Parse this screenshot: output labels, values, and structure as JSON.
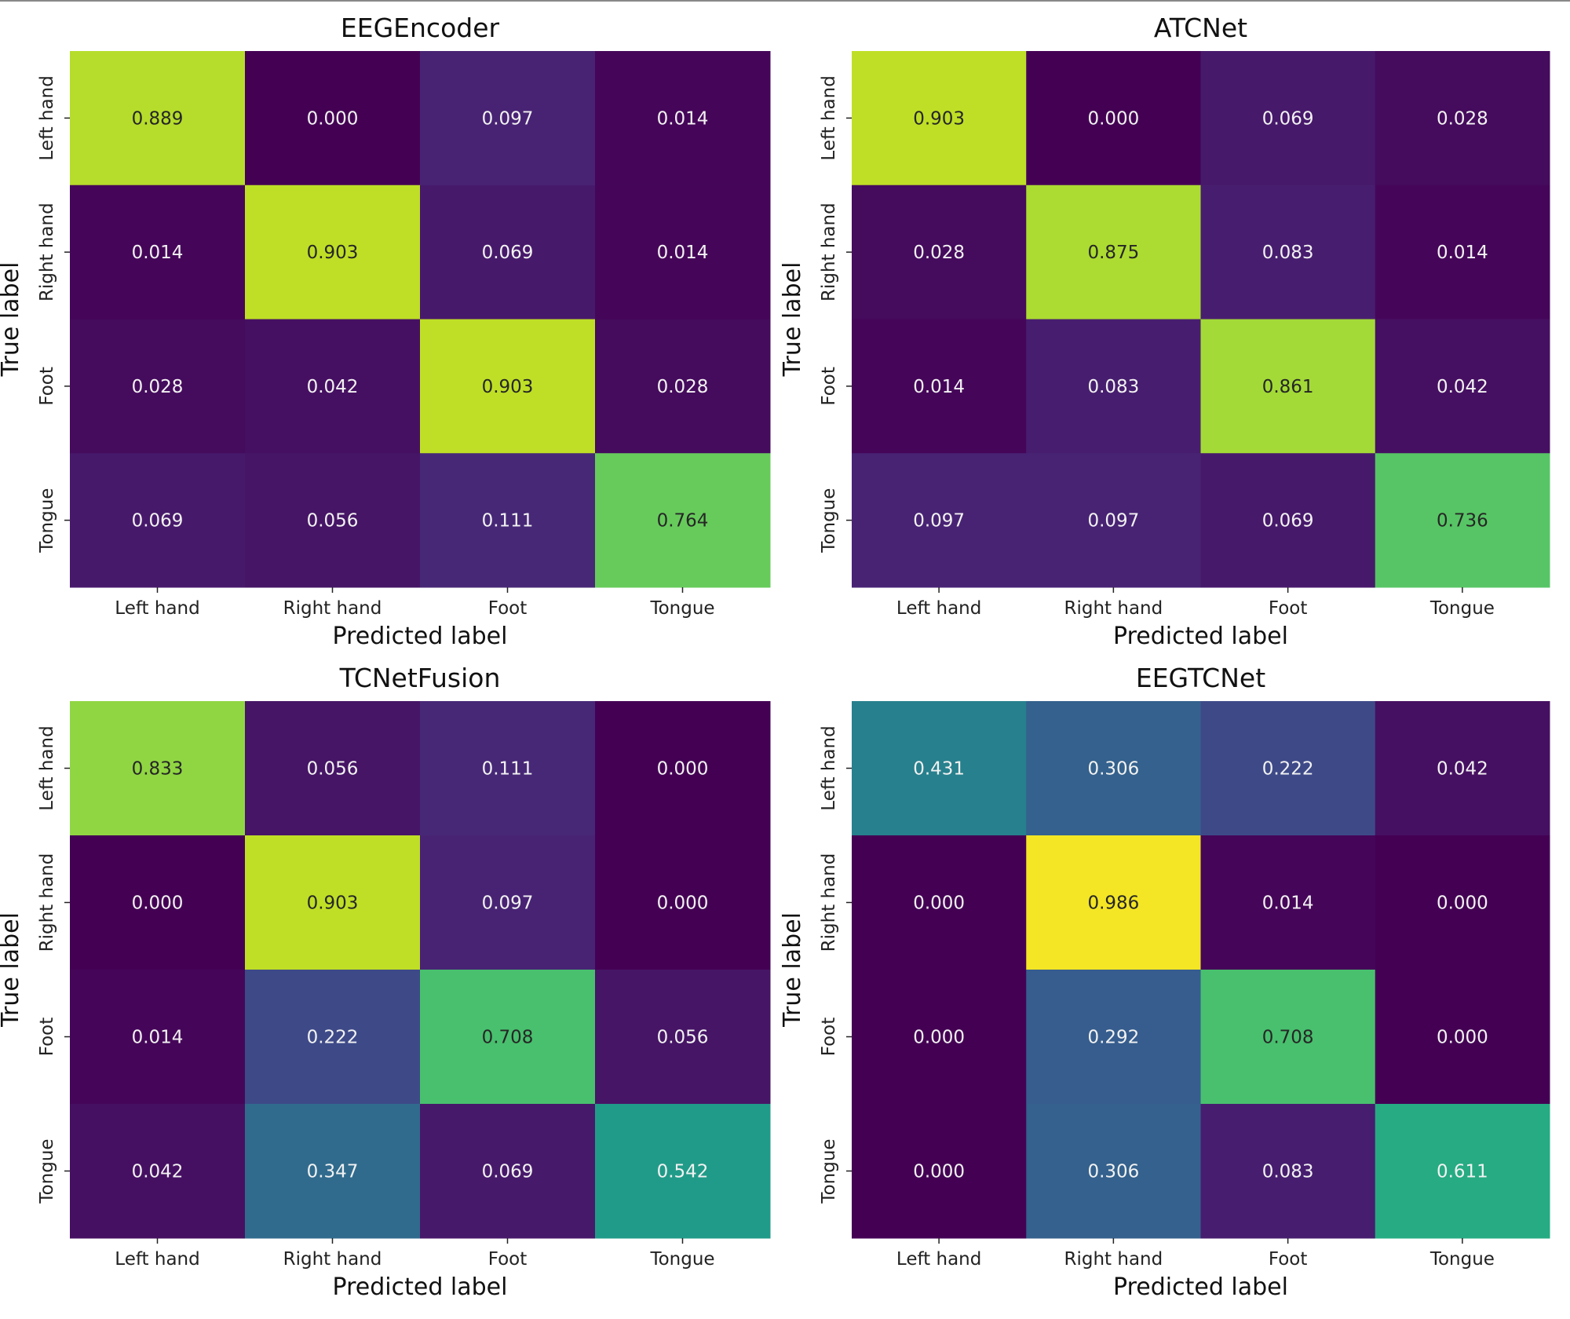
{
  "chart_data": [
    {
      "type": "heatmap",
      "title": "EEGEncoder",
      "xlabel": "Predicted label",
      "ylabel": "True label",
      "x_categories": [
        "Left hand",
        "Right hand",
        "Foot",
        "Tongue"
      ],
      "y_categories": [
        "Left hand",
        "Right hand",
        "Foot",
        "Tongue"
      ],
      "values": [
        [
          0.889,
          0.0,
          0.097,
          0.014
        ],
        [
          0.014,
          0.903,
          0.069,
          0.014
        ],
        [
          0.028,
          0.042,
          0.903,
          0.028
        ],
        [
          0.069,
          0.056,
          0.111,
          0.764
        ]
      ],
      "colormap": "viridis",
      "value_range": [
        0,
        1
      ]
    },
    {
      "type": "heatmap",
      "title": "ATCNet",
      "xlabel": "Predicted label",
      "ylabel": "True label",
      "x_categories": [
        "Left hand",
        "Right hand",
        "Foot",
        "Tongue"
      ],
      "y_categories": [
        "Left hand",
        "Right hand",
        "Foot",
        "Tongue"
      ],
      "values": [
        [
          0.903,
          0.0,
          0.069,
          0.028
        ],
        [
          0.028,
          0.875,
          0.083,
          0.014
        ],
        [
          0.014,
          0.083,
          0.861,
          0.042
        ],
        [
          0.097,
          0.097,
          0.069,
          0.736
        ]
      ],
      "colormap": "viridis",
      "value_range": [
        0,
        1
      ]
    },
    {
      "type": "heatmap",
      "title": "TCNetFusion",
      "xlabel": "Predicted label",
      "ylabel": "True label",
      "x_categories": [
        "Left hand",
        "Right hand",
        "Foot",
        "Tongue"
      ],
      "y_categories": [
        "Left hand",
        "Right hand",
        "Foot",
        "Tongue"
      ],
      "values": [
        [
          0.833,
          0.056,
          0.111,
          0.0
        ],
        [
          0.0,
          0.903,
          0.097,
          0.0
        ],
        [
          0.014,
          0.222,
          0.708,
          0.056
        ],
        [
          0.042,
          0.347,
          0.069,
          0.542
        ]
      ],
      "colormap": "viridis",
      "value_range": [
        0,
        1
      ]
    },
    {
      "type": "heatmap",
      "title": "EEGTCNet",
      "xlabel": "Predicted label",
      "ylabel": "True label",
      "x_categories": [
        "Left hand",
        "Right hand",
        "Foot",
        "Tongue"
      ],
      "y_categories": [
        "Left hand",
        "Right hand",
        "Foot",
        "Tongue"
      ],
      "values": [
        [
          0.431,
          0.306,
          0.222,
          0.042
        ],
        [
          0.0,
          0.986,
          0.014,
          0.0
        ],
        [
          0.0,
          0.292,
          0.708,
          0.0
        ],
        [
          0.0,
          0.306,
          0.083,
          0.611
        ]
      ],
      "colormap": "viridis",
      "value_range": [
        0,
        1
      ]
    }
  ]
}
